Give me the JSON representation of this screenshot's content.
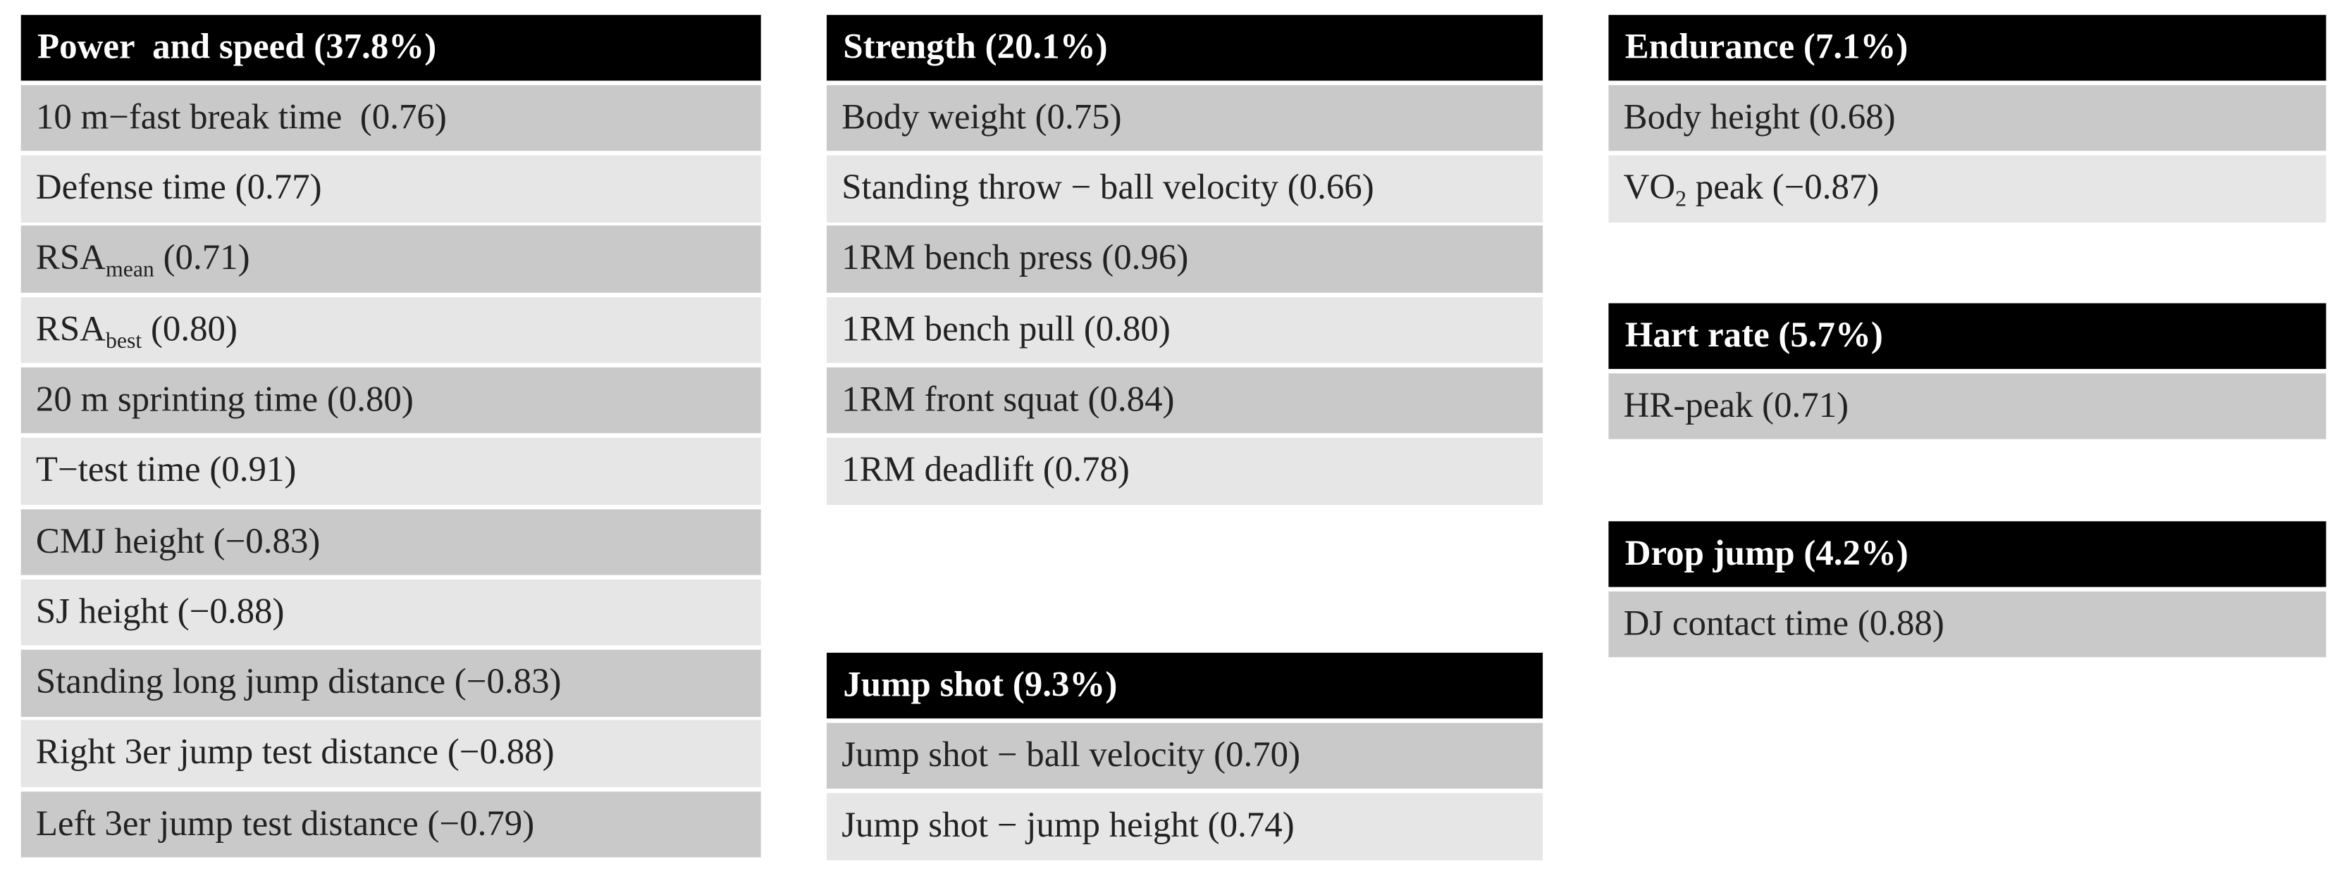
{
  "groups": [
    {
      "title": "Power  and speed (37.8%)",
      "items": [
        "10 m−fast break time  (0.76)",
        "Defense time (0.77)",
        {
          "text": "RSA",
          "sub": "mean",
          "rest": " (0.71)"
        },
        {
          "text": "RSA",
          "sub": "best",
          "rest": " (0.80)"
        },
        "20 m sprinting time (0.80)",
        "T−test time (0.91)",
        "CMJ height (−0.83)",
        "SJ height (−0.88)",
        "Standing long jump distance (−0.83)",
        "Right 3er jump test distance (−0.88)",
        "Left 3er jump test distance (−0.79)"
      ]
    },
    {
      "title": "Strength (20.1%)",
      "items": [
        "Body weight (0.75)",
        "Standing throw − ball velocity (0.66)",
        "1RM bench press (0.96)",
        "1RM bench pull (0.80)",
        "1RM front squat (0.84)",
        "1RM deadlift (0.78)"
      ]
    },
    {
      "title": "Jump shot (9.3%)",
      "items": [
        "Jump shot − ball velocity (0.70)",
        "Jump shot − jump height (0.74)"
      ]
    },
    {
      "title": "Endurance (7.1%)",
      "items": [
        "Body height (0.68)",
        {
          "text": "VO",
          "sub": "2",
          "rest": " peak (−0.87)"
        }
      ]
    },
    {
      "title": "Hart rate (5.7%)",
      "items": [
        "HR-peak (0.71)"
      ]
    },
    {
      "title": "Drop jump (4.2%)",
      "items": [
        "DJ contact time (0.88)"
      ]
    }
  ]
}
